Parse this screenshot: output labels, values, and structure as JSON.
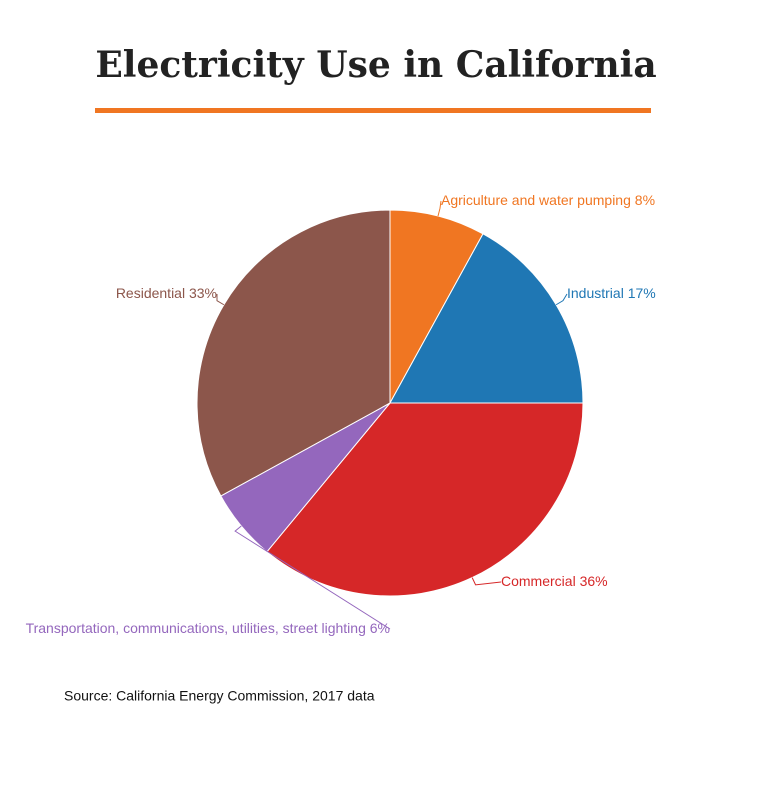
{
  "chart_data": {
    "type": "pie",
    "title": "Electricity Use in California",
    "categories": [
      "Agriculture and water pumping",
      "Industrial",
      "Commercial",
      "Transportation, communications, utilities, street lighting",
      "Residential"
    ],
    "values": [
      8,
      17,
      36,
      6,
      33
    ],
    "value_labels": [
      "8%",
      "17%",
      "36%",
      "6%",
      "33%"
    ],
    "colors": [
      "#f07622",
      "#1f77b4",
      "#d62728",
      "#9467bd",
      "#8c564b"
    ],
    "source": "Source: California Energy Commission, 2017 data"
  }
}
